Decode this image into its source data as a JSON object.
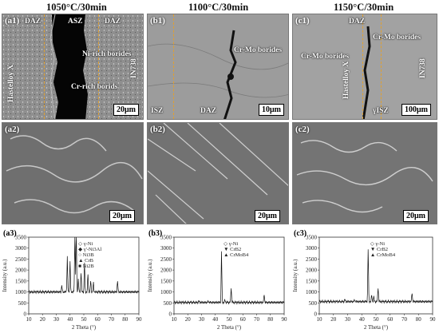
{
  "headers": [
    "1050°C/30min",
    "1100°C/30min",
    "1150°C/30min"
  ],
  "row1": {
    "a1": {
      "label": "(a1)",
      "daz_left": "DAZ",
      "asz": "ASZ",
      "daz_right": "DAZ",
      "side_left": "Hastelloy X",
      "side_right": "IN738",
      "ann1": "Ni-rich borides",
      "ann2": "Cr-rich borids",
      "scale": "20μm"
    },
    "b1": {
      "label": "(b1)",
      "ann": "Cr-Mo borides",
      "isz": "ISZ",
      "daz": "DAZ",
      "scale": "10μm"
    },
    "c1": {
      "label": "(c1)",
      "daz": "DAZ",
      "ann1": "Cr-Mo borides",
      "ann2": "Cr-Mo borides",
      "side_left": "Hastelloy X",
      "side_right": "IN738",
      "gamma": "γISZ",
      "scale": "100μm"
    }
  },
  "row2": {
    "a2": {
      "label": "(a2)",
      "scale": "20μm"
    },
    "b2": {
      "label": "(b2)",
      "scale": "20μm"
    },
    "c2": {
      "label": "(c2)",
      "scale": "20μm"
    }
  },
  "chart_data": [
    {
      "type": "line",
      "label": "(a3)",
      "xlabel": "2 Theta (°)",
      "ylabel": "Intensity (a.u.)",
      "xlim": [
        10,
        90
      ],
      "ylim": [
        0,
        3500
      ],
      "xticks": [
        10,
        20,
        30,
        40,
        50,
        60,
        70,
        80,
        90
      ],
      "yticks": [
        0,
        500,
        1000,
        1500,
        2000,
        2500,
        3000,
        3500
      ],
      "legend": [
        "γ-Ni",
        "γ'-Ni3Al",
        "Ni3B",
        "CrB",
        "Ni2B"
      ],
      "baseline": 1000,
      "peaks": [
        [
          34,
          300
        ],
        [
          38,
          1600
        ],
        [
          40,
          1400
        ],
        [
          43.5,
          2700
        ],
        [
          44.5,
          3250
        ],
        [
          46,
          600
        ],
        [
          48,
          900
        ],
        [
          50.5,
          1350
        ],
        [
          53,
          800
        ],
        [
          55,
          500
        ],
        [
          57,
          400
        ],
        [
          74.5,
          500
        ]
      ]
    },
    {
      "type": "line",
      "label": "(b3)",
      "xlabel": "2 Theta (°)",
      "ylabel": "Intensity (a.u.)",
      "xlim": [
        10,
        90
      ],
      "ylim": [
        0,
        3500
      ],
      "xticks": [
        10,
        20,
        30,
        40,
        50,
        60,
        70,
        80,
        90
      ],
      "yticks": [
        0,
        500,
        1000,
        1500,
        2000,
        2500,
        3000,
        3500
      ],
      "legend": [
        "γ-Ni",
        "CrB2",
        "CrMoB4"
      ],
      "baseline": 520,
      "peaks": [
        [
          28,
          80
        ],
        [
          35,
          60
        ],
        [
          44.5,
          2350
        ],
        [
          47,
          120
        ],
        [
          51.5,
          700
        ],
        [
          75.5,
          380
        ]
      ]
    },
    {
      "type": "line",
      "label": "(c3)",
      "xlabel": "2 Theta (°)",
      "ylabel": "Intensity (a.u.)",
      "xlim": [
        10,
        90
      ],
      "ylim": [
        0,
        3500
      ],
      "xticks": [
        10,
        20,
        30,
        40,
        50,
        60,
        70,
        80,
        90
      ],
      "yticks": [
        0,
        500,
        1000,
        1500,
        2000,
        2500,
        3000,
        3500
      ],
      "legend": [
        "γ-Ni",
        "CrB2",
        "CrMoB4"
      ],
      "baseline": 560,
      "peaks": [
        [
          28,
          100
        ],
        [
          35,
          80
        ],
        [
          44.5,
          2400
        ],
        [
          47,
          300
        ],
        [
          48.5,
          200
        ],
        [
          51.5,
          650
        ],
        [
          75.5,
          400
        ]
      ]
    }
  ]
}
